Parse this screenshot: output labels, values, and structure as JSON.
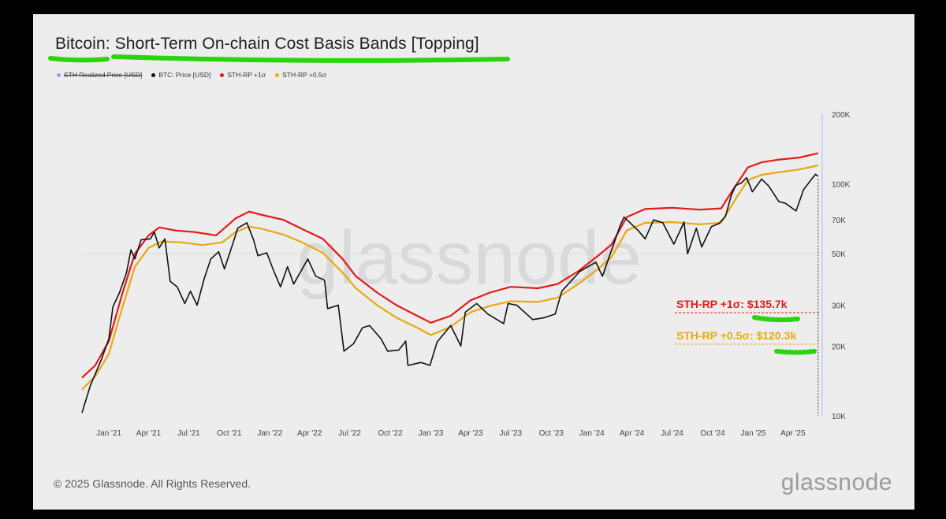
{
  "title": "Bitcoin: Short-Term On-chain Cost Basis Bands [Topping]",
  "legend": [
    {
      "label": "STH Realized Price [USD]",
      "color": "#8d9cf0",
      "struck": true
    },
    {
      "label": "BTC: Price [USD]",
      "color": "#111111",
      "struck": false
    },
    {
      "label": "STH-RP +1σ",
      "color": "#e41a1a",
      "struck": false
    },
    {
      "label": "STH-RP +0.5σ",
      "color": "#e8a90f",
      "struck": false
    }
  ],
  "footer": "© 2025 Glassnode. All Rights Reserved.",
  "brand": "glassnode",
  "watermark": "glassnode",
  "annotations": {
    "red": "STH-RP +1σ: $135.7k",
    "orange": "STH-RP +0.5σ: $120.3k"
  },
  "colors": {
    "price": "#111111",
    "band1": "#e41a1a",
    "band05": "#e8a90f",
    "sth_realized": "#8d9cf0",
    "highlight": "#2bd40f"
  },
  "chart_data": {
    "type": "line",
    "y_scale": "log",
    "ylim": [
      10000,
      200000
    ],
    "y_ticks": [
      {
        "label": "200K",
        "value": 200000
      },
      {
        "label": "100K",
        "value": 100000
      },
      {
        "label": "70K",
        "value": 70000
      },
      {
        "label": "50K",
        "value": 50000
      },
      {
        "label": "30K",
        "value": 30000
      },
      {
        "label": "20K",
        "value": 20000
      },
      {
        "label": "10K",
        "value": 10000
      }
    ],
    "x_range": [
      "2020-11-01",
      "2025-06-01"
    ],
    "x_ticks": [
      {
        "label": "Jan '21",
        "date": "2021-01-01"
      },
      {
        "label": "Apr '21",
        "date": "2021-04-01"
      },
      {
        "label": "Jul '21",
        "date": "2021-07-01"
      },
      {
        "label": "Oct '21",
        "date": "2021-10-01"
      },
      {
        "label": "Jan '22",
        "date": "2022-01-01"
      },
      {
        "label": "Apr '22",
        "date": "2022-04-01"
      },
      {
        "label": "Jul '22",
        "date": "2022-07-01"
      },
      {
        "label": "Oct '22",
        "date": "2022-10-01"
      },
      {
        "label": "Jan '23",
        "date": "2023-01-01"
      },
      {
        "label": "Apr '23",
        "date": "2023-04-01"
      },
      {
        "label": "Jul '23",
        "date": "2023-07-01"
      },
      {
        "label": "Oct '23",
        "date": "2023-10-01"
      },
      {
        "label": "Jan '24",
        "date": "2024-01-01"
      },
      {
        "label": "Apr '24",
        "date": "2024-04-01"
      },
      {
        "label": "Jul '24",
        "date": "2024-07-01"
      },
      {
        "label": "Oct '24",
        "date": "2024-10-01"
      },
      {
        "label": "Jan '25",
        "date": "2025-01-01"
      },
      {
        "label": "Apr '25",
        "date": "2025-04-01"
      }
    ],
    "series": [
      {
        "name": "BTC: Price [USD]",
        "key": "price",
        "points": [
          [
            "2020-11-01",
            10300
          ],
          [
            "2020-11-20",
            13500
          ],
          [
            "2020-12-15",
            17500
          ],
          [
            "2021-01-01",
            21500
          ],
          [
            "2021-01-10",
            29500
          ],
          [
            "2021-01-25",
            34000
          ],
          [
            "2021-02-10",
            41500
          ],
          [
            "2021-02-20",
            52000
          ],
          [
            "2021-03-01",
            47500
          ],
          [
            "2021-03-15",
            57500
          ],
          [
            "2021-04-05",
            58000
          ],
          [
            "2021-04-14",
            62000
          ],
          [
            "2021-04-25",
            53000
          ],
          [
            "2021-05-08",
            58000
          ],
          [
            "2021-05-20",
            38000
          ],
          [
            "2021-06-05",
            36000
          ],
          [
            "2021-06-22",
            30500
          ],
          [
            "2021-07-05",
            34500
          ],
          [
            "2021-07-20",
            30000
          ],
          [
            "2021-08-05",
            39000
          ],
          [
            "2021-08-20",
            47500
          ],
          [
            "2021-09-07",
            51000
          ],
          [
            "2021-09-20",
            43000
          ],
          [
            "2021-10-10",
            56000
          ],
          [
            "2021-10-20",
            64500
          ],
          [
            "2021-11-10",
            68000
          ],
          [
            "2021-11-25",
            57500
          ],
          [
            "2021-12-05",
            49000
          ],
          [
            "2021-12-25",
            50500
          ],
          [
            "2022-01-10",
            42000
          ],
          [
            "2022-01-25",
            36000
          ],
          [
            "2022-02-10",
            44000
          ],
          [
            "2022-02-24",
            37000
          ],
          [
            "2022-03-28",
            47500
          ],
          [
            "2022-04-15",
            40000
          ],
          [
            "2022-05-05",
            38500
          ],
          [
            "2022-05-12",
            29000
          ],
          [
            "2022-06-05",
            30000
          ],
          [
            "2022-06-18",
            19000
          ],
          [
            "2022-07-10",
            20500
          ],
          [
            "2022-07-30",
            24000
          ],
          [
            "2022-08-15",
            24500
          ],
          [
            "2022-09-10",
            21500
          ],
          [
            "2022-09-25",
            19000
          ],
          [
            "2022-10-20",
            19200
          ],
          [
            "2022-11-05",
            21000
          ],
          [
            "2022-11-10",
            16500
          ],
          [
            "2022-12-10",
            17000
          ],
          [
            "2022-12-30",
            16500
          ],
          [
            "2023-01-15",
            20800
          ],
          [
            "2023-02-15",
            24500
          ],
          [
            "2023-03-10",
            20000
          ],
          [
            "2023-03-20",
            28000
          ],
          [
            "2023-04-15",
            30500
          ],
          [
            "2023-05-10",
            27500
          ],
          [
            "2023-06-15",
            25000
          ],
          [
            "2023-06-25",
            30500
          ],
          [
            "2023-07-15",
            30000
          ],
          [
            "2023-08-20",
            26000
          ],
          [
            "2023-09-15",
            26500
          ],
          [
            "2023-10-10",
            27500
          ],
          [
            "2023-10-25",
            34500
          ],
          [
            "2023-12-05",
            42000
          ],
          [
            "2024-01-10",
            46000
          ],
          [
            "2024-01-25",
            40000
          ],
          [
            "2024-02-15",
            52000
          ],
          [
            "2024-03-05",
            66000
          ],
          [
            "2024-03-14",
            72000
          ],
          [
            "2024-04-15",
            63000
          ],
          [
            "2024-05-01",
            58000
          ],
          [
            "2024-05-20",
            70000
          ],
          [
            "2024-06-10",
            68000
          ],
          [
            "2024-07-05",
            55000
          ],
          [
            "2024-07-28",
            68500
          ],
          [
            "2024-08-05",
            50000
          ],
          [
            "2024-08-25",
            64500
          ],
          [
            "2024-09-06",
            53500
          ],
          [
            "2024-09-28",
            65500
          ],
          [
            "2024-10-15",
            67500
          ],
          [
            "2024-10-30",
            72500
          ],
          [
            "2024-11-12",
            89000
          ],
          [
            "2024-11-22",
            98500
          ],
          [
            "2024-12-05",
            101000
          ],
          [
            "2024-12-17",
            106500
          ],
          [
            "2024-12-30",
            92500
          ],
          [
            "2025-01-20",
            105000
          ],
          [
            "2025-02-05",
            98000
          ],
          [
            "2025-02-28",
            84000
          ],
          [
            "2025-03-15",
            82500
          ],
          [
            "2025-04-08",
            76500
          ],
          [
            "2025-04-25",
            94500
          ],
          [
            "2025-05-10",
            103000
          ],
          [
            "2025-05-22",
            110000
          ],
          [
            "2025-05-28",
            108000
          ]
        ]
      },
      {
        "name": "STH-RP +1σ",
        "key": "band1",
        "points": [
          [
            "2020-11-01",
            14600
          ],
          [
            "2020-12-01",
            16500
          ],
          [
            "2021-01-01",
            21000
          ],
          [
            "2021-02-01",
            34000
          ],
          [
            "2021-03-01",
            50000
          ],
          [
            "2021-04-01",
            60000
          ],
          [
            "2021-04-25",
            65000
          ],
          [
            "2021-06-01",
            63000
          ],
          [
            "2021-07-15",
            62000
          ],
          [
            "2021-09-01",
            60000
          ],
          [
            "2021-10-15",
            71000
          ],
          [
            "2021-11-15",
            76000
          ],
          [
            "2021-12-15",
            73500
          ],
          [
            "2022-02-01",
            70000
          ],
          [
            "2022-03-15",
            64000
          ],
          [
            "2022-05-01",
            58000
          ],
          [
            "2022-06-15",
            47500
          ],
          [
            "2022-07-15",
            40000
          ],
          [
            "2022-09-01",
            34000
          ],
          [
            "2022-10-15",
            30000
          ],
          [
            "2022-12-01",
            27000
          ],
          [
            "2023-01-01",
            25200
          ],
          [
            "2023-02-15",
            27000
          ],
          [
            "2023-04-01",
            31500
          ],
          [
            "2023-05-15",
            34000
          ],
          [
            "2023-07-01",
            36000
          ],
          [
            "2023-09-01",
            35500
          ],
          [
            "2023-10-15",
            37000
          ],
          [
            "2023-12-01",
            42000
          ],
          [
            "2024-01-15",
            49000
          ],
          [
            "2024-02-15",
            55000
          ],
          [
            "2024-03-20",
            72000
          ],
          [
            "2024-05-01",
            78000
          ],
          [
            "2024-07-01",
            79000
          ],
          [
            "2024-09-01",
            77500
          ],
          [
            "2024-10-20",
            78500
          ],
          [
            "2024-11-20",
            97000
          ],
          [
            "2024-12-20",
            118000
          ],
          [
            "2025-01-20",
            124000
          ],
          [
            "2025-03-01",
            127500
          ],
          [
            "2025-04-15",
            130000
          ],
          [
            "2025-05-28",
            135700
          ]
        ]
      },
      {
        "name": "STH-RP +0.5σ",
        "key": "band05",
        "points": [
          [
            "2020-11-01",
            13000
          ],
          [
            "2020-12-01",
            14800
          ],
          [
            "2021-01-01",
            18500
          ],
          [
            "2021-02-01",
            29500
          ],
          [
            "2021-03-01",
            44000
          ],
          [
            "2021-04-01",
            53000
          ],
          [
            "2021-05-01",
            56500
          ],
          [
            "2021-06-15",
            56000
          ],
          [
            "2021-08-01",
            54500
          ],
          [
            "2021-09-15",
            56000
          ],
          [
            "2021-10-15",
            62000
          ],
          [
            "2021-11-15",
            65500
          ],
          [
            "2021-12-15",
            64000
          ],
          [
            "2022-02-01",
            60500
          ],
          [
            "2022-03-15",
            56000
          ],
          [
            "2022-05-01",
            50500
          ],
          [
            "2022-06-15",
            41500
          ],
          [
            "2022-07-15",
            35500
          ],
          [
            "2022-09-01",
            30000
          ],
          [
            "2022-10-15",
            26500
          ],
          [
            "2022-12-01",
            24000
          ],
          [
            "2023-01-01",
            22300
          ],
          [
            "2023-02-15",
            24200
          ],
          [
            "2023-04-01",
            28000
          ],
          [
            "2023-05-15",
            29800
          ],
          [
            "2023-07-01",
            31200
          ],
          [
            "2023-09-01",
            31000
          ],
          [
            "2023-10-15",
            32300
          ],
          [
            "2023-12-01",
            37000
          ],
          [
            "2024-01-15",
            43000
          ],
          [
            "2024-02-15",
            48500
          ],
          [
            "2024-03-20",
            63000
          ],
          [
            "2024-05-01",
            68000
          ],
          [
            "2024-07-01",
            68500
          ],
          [
            "2024-09-01",
            67000
          ],
          [
            "2024-10-20",
            68000
          ],
          [
            "2024-11-20",
            85000
          ],
          [
            "2024-12-20",
            104000
          ],
          [
            "2025-01-20",
            109500
          ],
          [
            "2025-03-01",
            112500
          ],
          [
            "2025-04-15",
            115500
          ],
          [
            "2025-05-28",
            120300
          ]
        ]
      }
    ],
    "grid": "one faint horizontal line at 50K"
  }
}
